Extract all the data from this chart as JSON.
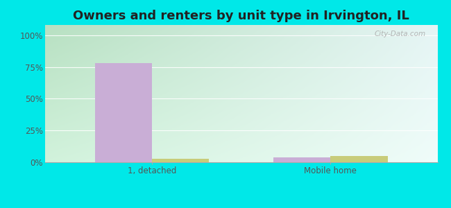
{
  "title": "Owners and renters by unit type in Irvington, IL",
  "categories": [
    "1, detached",
    "Mobile home"
  ],
  "owner_values": [
    78,
    4
  ],
  "renter_values": [
    3,
    5
  ],
  "owner_color": "#c9aed6",
  "renter_color": "#c8cc7a",
  "figure_bg": "#00e8e8",
  "yticks": [
    0,
    25,
    50,
    75,
    100
  ],
  "ytick_labels": [
    "0%",
    "25%",
    "50%",
    "75%",
    "100%"
  ],
  "bar_width": 0.32,
  "watermark": "City-Data.com",
  "title_fontsize": 13,
  "tick_fontsize": 8.5,
  "legend_fontsize": 8.5,
  "bg_colors_top": "#b0ddb8",
  "bg_colors_bottom": "#e8f8e8",
  "bg_right_tint": "#d8eef0"
}
